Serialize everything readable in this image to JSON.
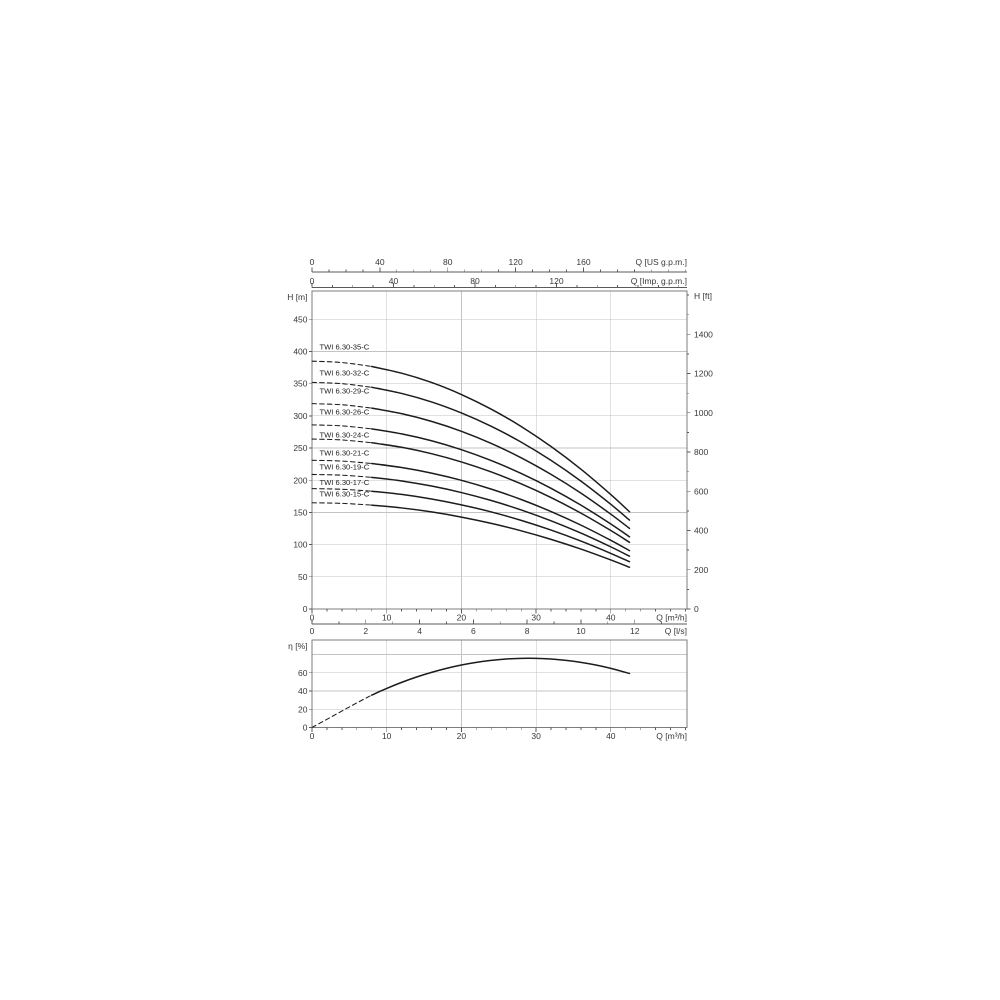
{
  "figure": {
    "description": "Pump performance curves: head vs flow for TWI 6.30 series with efficiency curve below"
  },
  "colors": {
    "curve": "#1c1c1c",
    "grid": "#c3c3c3",
    "frame": "#7d7d7d",
    "axis": "#5a5a5a",
    "text": "#383838",
    "background": "#ffffff"
  },
  "chart_data": [
    {
      "type": "line",
      "id": "head-flow-chart",
      "title": "",
      "xlim": [
        0,
        50.2
      ],
      "ylim": [
        0,
        494
      ],
      "grid": {
        "x_step": 10,
        "y_step": 50
      },
      "x_axes": [
        {
          "id": "q-m3h",
          "label": "Q [m³/h]",
          "position": "bottom",
          "unit_per_m3h": 1,
          "majors": [
            0,
            10,
            20,
            30,
            40
          ],
          "minor_step": 2
        },
        {
          "id": "q-ls",
          "label": "Q [l/s]",
          "position": "bottom-outer",
          "unit_per_m3h": 0.27778,
          "majors": [
            0,
            2,
            4,
            6,
            8,
            10,
            12
          ],
          "minor_step": 1
        },
        {
          "id": "q-usgpm",
          "label": "Q [US g.p.m.]",
          "position": "top-outer",
          "unit_per_m3h": 4.4029,
          "majors": [
            0,
            40,
            80,
            120,
            160
          ],
          "minor_step": 10
        },
        {
          "id": "q-impgpm",
          "label": "Q [Imp. g.p.m.]",
          "position": "top",
          "unit_per_m3h": 3.6662,
          "majors": [
            0,
            40,
            80,
            120
          ],
          "minor_step": 10
        }
      ],
      "y_axes": [
        {
          "id": "h-m",
          "label": "H [m]",
          "position": "left",
          "unit_per_m": 1,
          "majors": [
            0,
            50,
            100,
            150,
            200,
            250,
            300,
            350,
            400,
            450
          ]
        },
        {
          "id": "h-ft",
          "label": "H [ft]",
          "position": "right",
          "unit_per_m": 3.2808,
          "majors": [
            0,
            200,
            400,
            600,
            800,
            1000,
            1200,
            1400
          ],
          "minor_step": 100
        }
      ],
      "series": [
        {
          "name": "TWI 6.30-35-C",
          "label_pos": [
            0.6,
            407
          ],
          "dashed": [
            [
              0,
              385
            ],
            [
              4,
              382.9
            ],
            [
              8,
              376.7
            ]
          ],
          "points": [
            [
              8,
              376.7
            ],
            [
              12,
              366.3
            ],
            [
              16,
              351.9
            ],
            [
              20,
              333.2
            ],
            [
              24,
              310.4
            ],
            [
              28,
              283.5
            ],
            [
              32,
              252.4
            ],
            [
              36,
              217.2
            ],
            [
              40,
              177.8
            ],
            [
              42.5,
              151.1
            ]
          ]
        },
        {
          "name": "TWI 6.30-32-C",
          "label_pos": [
            0.6,
            367
          ],
          "dashed": [
            [
              0,
              352
            ],
            [
              4,
              350.1
            ],
            [
              8,
              344.4
            ]
          ],
          "points": [
            [
              8,
              344.4
            ],
            [
              12,
              334.9
            ],
            [
              16,
              321.7
            ],
            [
              20,
              304.6
            ],
            [
              24,
              283.8
            ],
            [
              28,
              259.2
            ],
            [
              32,
              230.8
            ],
            [
              36,
              198.6
            ],
            [
              40,
              162.6
            ],
            [
              42.5,
              138.1
            ]
          ]
        },
        {
          "name": "TWI 6.30-29-C",
          "label_pos": [
            0.6,
            339
          ],
          "dashed": [
            [
              0,
              319
            ],
            [
              4,
              317.3
            ],
            [
              8,
              312.1
            ]
          ],
          "points": [
            [
              8,
              312.1
            ],
            [
              12,
              303.5
            ],
            [
              16,
              291.5
            ],
            [
              20,
              276.1
            ],
            [
              24,
              257.2
            ],
            [
              28,
              234.9
            ],
            [
              32,
              209.1
            ],
            [
              36,
              180.0
            ],
            [
              40,
              147.3
            ],
            [
              42.5,
              125.2
            ]
          ]
        },
        {
          "name": "TWI 6.30-26-C",
          "label_pos": [
            0.6,
            306
          ],
          "dashed": [
            [
              0,
              286
            ],
            [
              4,
              284.5
            ],
            [
              8,
              279.8
            ]
          ],
          "points": [
            [
              8,
              279.8
            ],
            [
              12,
              272.1
            ],
            [
              16,
              261.4
            ],
            [
              20,
              247.5
            ],
            [
              24,
              230.6
            ],
            [
              28,
              210.6
            ],
            [
              32,
              187.5
            ],
            [
              36,
              161.3
            ],
            [
              40,
              132.1
            ],
            [
              42.5,
              112.2
            ]
          ]
        },
        {
          "name": "TWI 6.30-24-C",
          "label_pos": [
            0.6,
            270.5
          ],
          "dashed": [
            [
              0,
              264
            ],
            [
              4,
              262.6
            ],
            [
              8,
              258.3
            ]
          ],
          "points": [
            [
              8,
              258.3
            ],
            [
              12,
              251.2
            ],
            [
              16,
              241.3
            ],
            [
              20,
              228.5
            ],
            [
              24,
              212.9
            ],
            [
              28,
              194.4
            ],
            [
              32,
              173.1
            ],
            [
              36,
              148.9
            ],
            [
              40,
              121.9
            ],
            [
              42.5,
              103.6
            ]
          ]
        },
        {
          "name": "TWI 6.30-21-C",
          "label_pos": [
            0.6,
            242
          ],
          "dashed": [
            [
              0,
              231
            ],
            [
              4,
              229.8
            ],
            [
              8,
              226.0
            ]
          ],
          "points": [
            [
              8,
              226.0
            ],
            [
              12,
              219.8
            ],
            [
              16,
              211.1
            ],
            [
              20,
              199.9
            ],
            [
              24,
              186.2
            ],
            [
              28,
              170.1
            ],
            [
              32,
              151.4
            ],
            [
              36,
              130.3
            ],
            [
              40,
              106.7
            ],
            [
              42.5,
              90.7
            ]
          ]
        },
        {
          "name": "TWI 6.30-19-C",
          "label_pos": [
            0.6,
            220.5
          ],
          "dashed": [
            [
              0,
              209
            ],
            [
              4,
              207.9
            ],
            [
              8,
              204.5
            ]
          ],
          "points": [
            [
              8,
              204.5
            ],
            [
              12,
              198.9
            ],
            [
              16,
              191.0
            ],
            [
              20,
              180.9
            ],
            [
              24,
              168.5
            ],
            [
              28,
              153.9
            ],
            [
              32,
              137.0
            ],
            [
              36,
              117.9
            ],
            [
              40,
              96.5
            ],
            [
              42.5,
              82.0
            ]
          ]
        },
        {
          "name": "TWI 6.30-17-C",
          "label_pos": [
            0.6,
            196.5
          ],
          "dashed": [
            [
              0,
              187
            ],
            [
              4,
              186.0
            ],
            [
              8,
              183.0
            ]
          ],
          "points": [
            [
              8,
              183.0
            ],
            [
              12,
              178.0
            ],
            [
              16,
              170.9
            ],
            [
              20,
              161.8
            ],
            [
              24,
              150.8
            ],
            [
              28,
              137.7
            ],
            [
              32,
              122.6
            ],
            [
              36,
              105.5
            ],
            [
              40,
              86.4
            ],
            [
              42.5,
              73.4
            ]
          ]
        },
        {
          "name": "TWI 6.30-15-C",
          "label_pos": [
            0.6,
            179
          ],
          "dashed": [
            [
              0,
              165
            ],
            [
              4,
              164.1
            ],
            [
              8,
              161.4
            ]
          ],
          "points": [
            [
              8,
              161.4
            ],
            [
              12,
              157.0
            ],
            [
              16,
              150.8
            ],
            [
              20,
              142.8
            ],
            [
              24,
              133.0
            ],
            [
              28,
              121.5
            ],
            [
              32,
              108.2
            ],
            [
              36,
              93.1
            ],
            [
              40,
              76.2
            ],
            [
              42.5,
              64.8
            ]
          ]
        }
      ]
    },
    {
      "type": "line",
      "id": "efficiency-chart",
      "title": "",
      "xlim": [
        0,
        50.2
      ],
      "ylim": [
        0,
        96
      ],
      "grid": {
        "x_step": 10,
        "y_step": 20
      },
      "x_axes": [
        {
          "id": "q-m3h-eta",
          "label": "Q [m³/h]",
          "position": "bottom",
          "unit_per_m3h": 1,
          "majors": [
            0,
            10,
            20,
            30,
            40
          ],
          "minor_step": 2
        }
      ],
      "y_axes": [
        {
          "id": "eta",
          "label": "η [%]",
          "position": "left",
          "unit_per_m": 1,
          "majors": [
            0,
            20,
            40,
            60
          ]
        }
      ],
      "series": [
        {
          "name": "efficiency",
          "dashed": [
            [
              0,
              0
            ],
            [
              2,
              9
            ],
            [
              4,
              18
            ],
            [
              6,
              27
            ],
            [
              8,
              35.6
            ]
          ],
          "points": [
            [
              8,
              35.6
            ],
            [
              10,
              42.9
            ],
            [
              12,
              49.5
            ],
            [
              14,
              55.4
            ],
            [
              16,
              60.5
            ],
            [
              18,
              64.9
            ],
            [
              20,
              68.6
            ],
            [
              22,
              71.5
            ],
            [
              24,
              73.7
            ],
            [
              26,
              75.2
            ],
            [
              28,
              75.9
            ],
            [
              30,
              75.9
            ],
            [
              32,
              75.2
            ],
            [
              34,
              73.7
            ],
            [
              36,
              71.5
            ],
            [
              38,
              68.6
            ],
            [
              40,
              64.9
            ],
            [
              42.5,
              59.3
            ]
          ]
        }
      ]
    }
  ]
}
